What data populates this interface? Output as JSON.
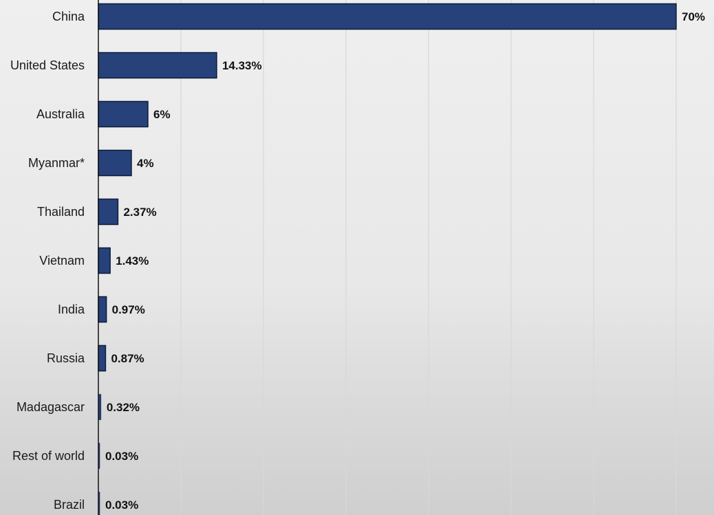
{
  "chart_data": {
    "type": "bar",
    "orientation": "horizontal",
    "title": "",
    "xlabel": "",
    "ylabel": "",
    "categories": [
      "China",
      "United States",
      "Australia",
      "Myanmar*",
      "Thailand",
      "Vietnam",
      "India",
      "Russia",
      "Madagascar",
      "Rest of world",
      "Brazil"
    ],
    "values": [
      70,
      14.33,
      6,
      4,
      2.37,
      1.43,
      0.97,
      0.87,
      0.32,
      0.03,
      0.03
    ],
    "value_labels": [
      "70%",
      "14.33%",
      "6%",
      "4%",
      "2.37%",
      "1.43%",
      "0.97%",
      "0.87%",
      "0.32%",
      "0.03%",
      "0.03%"
    ],
    "xlim": [
      0,
      75
    ],
    "grid": true,
    "legend": "none",
    "colors": {
      "bar": "#27427a",
      "bar_outline": "#0f1c3a"
    }
  }
}
